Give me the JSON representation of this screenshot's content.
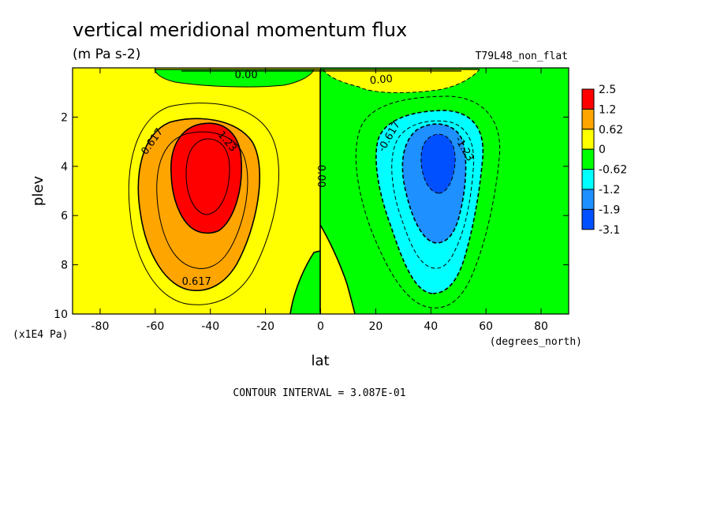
{
  "chart_data": {
    "type": "contour",
    "title": "vertical meridional momentum flux",
    "units": "(m Pa s-2)",
    "run_label": "T79L48_non_flat",
    "xlabel": "lat",
    "x_units": "(degrees_north)",
    "ylabel": "plev",
    "y_units": "(x1E4 Pa)",
    "contour_interval_text": "CONTOUR INTERVAL = 3.087E-01",
    "xlim": [
      -90,
      90
    ],
    "ylim": [
      0,
      10
    ],
    "y_inverted": true,
    "x_ticks": [
      -80,
      -60,
      -40,
      -20,
      0,
      20,
      40,
      60,
      80
    ],
    "y_ticks": [
      2,
      4,
      6,
      8,
      10
    ],
    "legend": {
      "placement": "right",
      "labels": [
        "2.5",
        "1.2",
        "0.62",
        "0",
        "-0.62",
        "-1.2",
        "-1.9",
        "-3.1"
      ],
      "colors": [
        "#ff0000",
        "#ffa500",
        "#ffff00",
        "#00ff00",
        "#00ffff",
        "#1e90ff",
        "#0050ff"
      ]
    },
    "contour_labels": [
      {
        "text": "0.617",
        "lat": -61,
        "plev": 3.0,
        "angle": -55
      },
      {
        "text": "1.23",
        "lat": -34,
        "plev": 3.0,
        "angle": 50
      },
      {
        "text": "0.617",
        "lat": -45,
        "plev": 8.7,
        "angle": 0
      },
      {
        "text": "0.00",
        "lat": 0,
        "plev": 4.4,
        "angle": 90
      },
      {
        "text": "0.00",
        "lat": -27,
        "plev": 0.3,
        "angle": 0
      },
      {
        "text": "0.00",
        "lat": 22,
        "plev": 0.5,
        "angle": -5
      },
      {
        "text": "-0.617",
        "lat": 25,
        "plev": 2.8,
        "angle": -60
      },
      {
        "text": "-1.23",
        "lat": 52,
        "plev": 3.3,
        "angle": 60
      }
    ],
    "features": [
      {
        "name": "southern positive maximum",
        "lat": -42,
        "plev": 4.0,
        "value_min": 1.2
      },
      {
        "name": "northern negative minimum",
        "lat": 43,
        "plev": 3.8,
        "value_max": -1.9
      }
    ]
  }
}
